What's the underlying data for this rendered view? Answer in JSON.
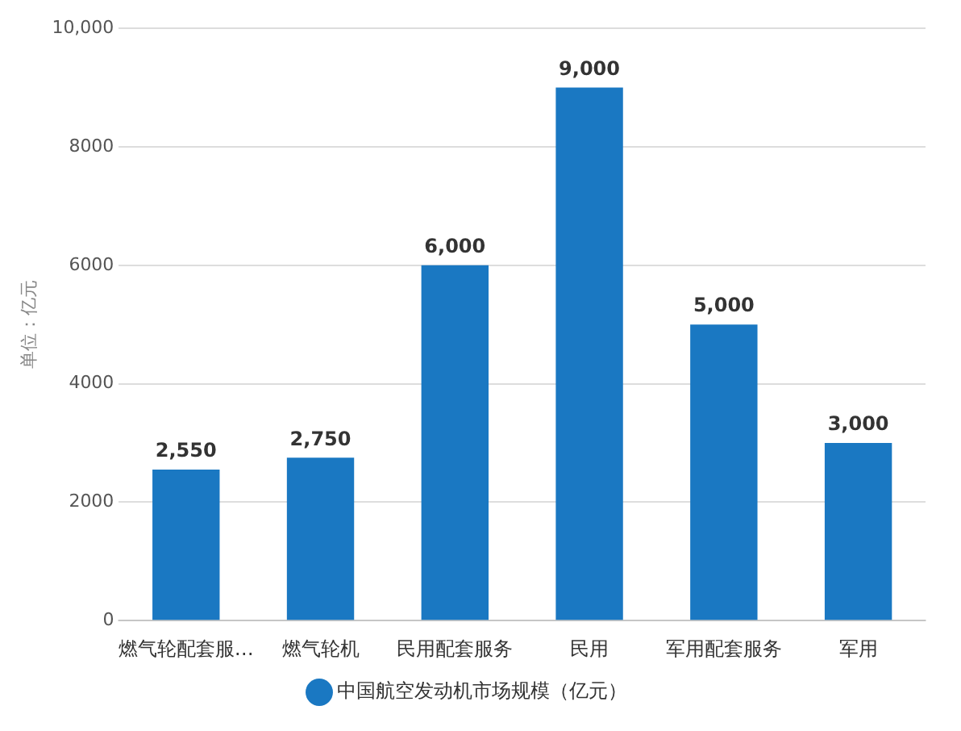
{
  "chart_data": {
    "type": "bar",
    "ylabel": "单位：亿元",
    "categories": [
      "燃气轮配套服…",
      "燃气轮机",
      "民用配套服务",
      "民用",
      "军用配套服务",
      "军用"
    ],
    "series": [
      {
        "name": "中国航空发动机市场规模（亿元）",
        "color": "#1a78c2",
        "values": [
          2550,
          2750,
          6000,
          9000,
          5000,
          3000
        ],
        "value_labels": [
          "2,550",
          "2,750",
          "6,000",
          "9,000",
          "5,000",
          "3,000"
        ]
      }
    ],
    "ylim": [
      0,
      10000
    ],
    "yticks": [
      0,
      2000,
      4000,
      6000,
      8000,
      {
        "value": 10000,
        "label": "10,000"
      }
    ],
    "grid": "y",
    "legend": "bottom",
    "marker": "circle"
  }
}
